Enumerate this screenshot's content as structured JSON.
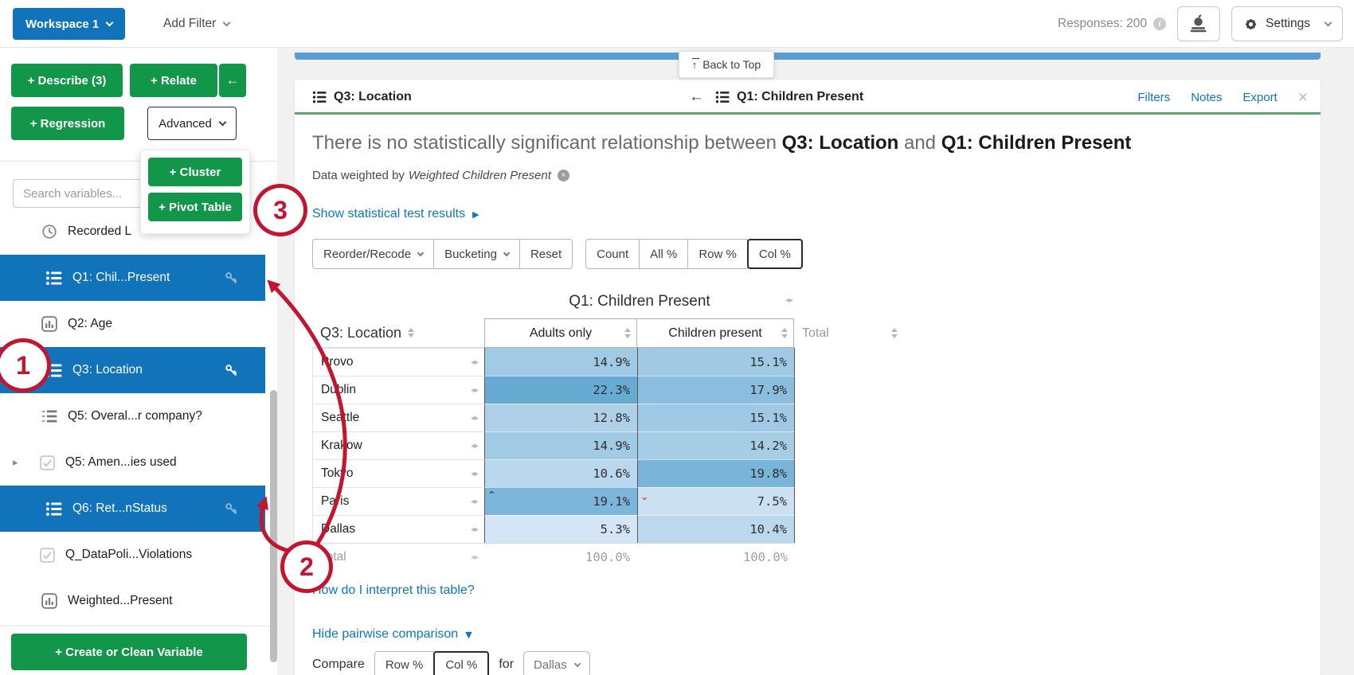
{
  "colors": {
    "primary_blue": "#1173ba",
    "green": "#11964a",
    "card_header_green": "#5aa571",
    "link_blue": "#0d76bf",
    "annotation_red": "#c3152f",
    "strip_blue": "#5a9dd5"
  },
  "icons": {
    "close": "×",
    "back_arrow": "←",
    "expand_cols": "◂▸",
    "expander": "▸",
    "play": "▶",
    "triangle_down": "▼",
    "caret_up": "^",
    "weight_remove": "×",
    "info": "i"
  },
  "topbar": {
    "workspace_label": "Workspace 1",
    "add_filter_label": "Add Filter",
    "responses_label": "Responses: 200",
    "settings_label": "Settings"
  },
  "back_to_top_label": "Back to Top",
  "sidebar": {
    "buttons": {
      "describe": "+ Describe (3)",
      "relate": "+ Relate",
      "collapse": "←",
      "regression": "+ Regression",
      "advanced": "Advanced"
    },
    "advanced_menu": [
      "+ Cluster",
      "+ Pivot Table"
    ],
    "search_placeholder": "Search variables...",
    "items": [
      {
        "label": "Recorded L",
        "icon": "history"
      },
      {
        "label": "Q1: Chil...Present",
        "icon": "list",
        "selected": true,
        "key": true
      },
      {
        "label": "Q2: Age",
        "icon": "bar-chart"
      },
      {
        "label": "Q3: Location",
        "icon": "list",
        "selected": true,
        "key": true,
        "key_solid": true
      },
      {
        "label": "Q5: Overal...r company?",
        "icon": "ordered-list"
      },
      {
        "label": "Q5: Amen...ies used",
        "icon": "checkbox",
        "expander": true
      },
      {
        "label": "Q6: Ret...nStatus",
        "icon": "list",
        "selected": true,
        "key": true
      },
      {
        "label": "Q_DataPoli...Violations",
        "icon": "checkbox"
      },
      {
        "label": "Weighted...Present",
        "icon": "bar-chart"
      }
    ],
    "create_button": "+ Create or Clean Variable"
  },
  "card": {
    "left_var": "Q3: Location",
    "right_var": "Q1: Children Present",
    "links": {
      "filters": "Filters",
      "notes": "Notes",
      "export": "Export"
    },
    "headline": {
      "pre": "There is no statistically significant relationship between ",
      "var1": "Q3: Location",
      "mid": " and ",
      "var2": "Q1: Children Present"
    },
    "weighted_note": {
      "prefix": "Data weighted by ",
      "weight_var": "Weighted Children Present"
    },
    "stat_link": "Show statistical test results",
    "toolbar_left": [
      {
        "label": "Reorder/Recode",
        "caret": true
      },
      {
        "label": "Bucketing",
        "caret": true
      },
      {
        "label": "Reset"
      }
    ],
    "toolbar_right": [
      {
        "label": "Count"
      },
      {
        "label": "All %"
      },
      {
        "label": "Row %"
      },
      {
        "label": "Col %",
        "active": true
      }
    ],
    "interpret_link": "How do I interpret this table?",
    "pairwise_link": "Hide pairwise comparison",
    "compare": {
      "label": "Compare",
      "options": [
        {
          "label": "Row %"
        },
        {
          "label": "Col %",
          "active": true
        }
      ],
      "for_label": "for",
      "selected_value": "Dallas"
    }
  },
  "table": {
    "caption": "Q1: Children Present",
    "row_header": "Q3: Location",
    "columns": [
      "Adults only",
      "Children present"
    ],
    "total_column": "Total",
    "rows": [
      {
        "label": "Provo",
        "cells": [
          {
            "v": "14.9%",
            "bg": "#a1cae4"
          },
          {
            "v": "15.1%",
            "bg": "#9fc9e4"
          }
        ]
      },
      {
        "label": "Dublin",
        "cells": [
          {
            "v": "22.3%",
            "bg": "#68abd2"
          },
          {
            "v": "17.9%",
            "bg": "#8abdde"
          }
        ]
      },
      {
        "label": "Seattle",
        "cells": [
          {
            "v": "12.8%",
            "bg": "#aed1e8"
          },
          {
            "v": "15.1%",
            "bg": "#9fc9e4"
          }
        ]
      },
      {
        "label": "Krakow",
        "cells": [
          {
            "v": "14.9%",
            "bg": "#a1cae4"
          },
          {
            "v": "14.2%",
            "bg": "#a6cde6"
          }
        ]
      },
      {
        "label": "Tokyo",
        "cells": [
          {
            "v": "10.6%",
            "bg": "#bad8ed"
          },
          {
            "v": "19.8%",
            "bg": "#79b4d9"
          }
        ]
      },
      {
        "label": "Paris",
        "cells": [
          {
            "v": "19.1%",
            "bg": "#7cb6da",
            "marker": "up"
          },
          {
            "v": "7.5%",
            "bg": "#cbe1f2",
            "marker": "down"
          }
        ]
      },
      {
        "label": "Dallas",
        "cells": [
          {
            "v": "5.3%",
            "bg": "#d4e6f5"
          },
          {
            "v": "10.4%",
            "bg": "#bbd8ed"
          }
        ]
      }
    ],
    "total_row": {
      "label": "Total",
      "cells": [
        "100.0%",
        "100.0%"
      ]
    }
  },
  "annotations": {
    "step1": "1",
    "step2": "2",
    "step3": "3"
  }
}
